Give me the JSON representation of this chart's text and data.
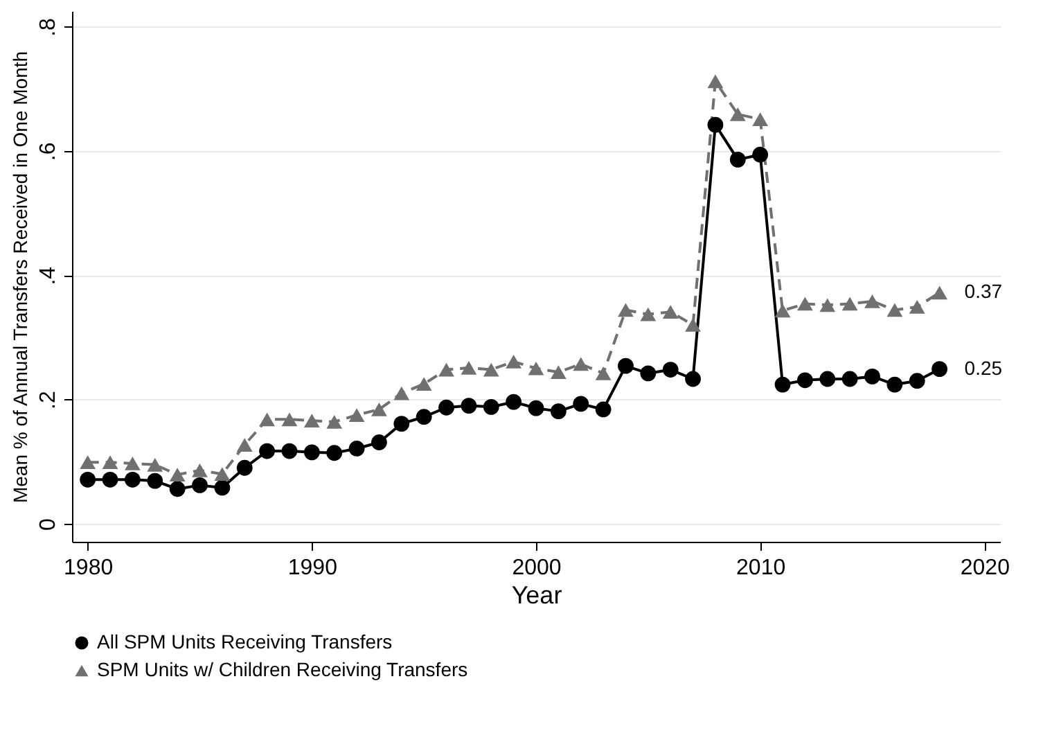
{
  "chart_data": {
    "type": "line",
    "xlabel": "Year",
    "ylabel": "Mean % of Annual Transfers Received in One Month",
    "x": [
      1980,
      1981,
      1982,
      1983,
      1984,
      1985,
      1986,
      1987,
      1988,
      1989,
      1990,
      1991,
      1992,
      1993,
      1994,
      1995,
      1996,
      1997,
      1998,
      1999,
      2000,
      2001,
      2002,
      2003,
      2004,
      2005,
      2006,
      2007,
      2008,
      2009,
      2010,
      2011,
      2012,
      2013,
      2014,
      2015,
      2016,
      2017,
      2018
    ],
    "series": [
      {
        "name": "All SPM Units Receiving Transfers",
        "color": "#000000",
        "marker": "circle",
        "line_style": "solid",
        "values": [
          0.071,
          0.071,
          0.071,
          0.069,
          0.056,
          0.062,
          0.058,
          0.09,
          0.117,
          0.117,
          0.115,
          0.114,
          0.121,
          0.131,
          0.161,
          0.172,
          0.187,
          0.19,
          0.188,
          0.196,
          0.186,
          0.181,
          0.193,
          0.184,
          0.254,
          0.242,
          0.248,
          0.233,
          0.642,
          0.586,
          0.594,
          0.224,
          0.231,
          0.233,
          0.233,
          0.237,
          0.224,
          0.23,
          0.249
        ]
      },
      {
        "name": "SPM Units w/ Children Receiving Transfers",
        "color": "#707070",
        "marker": "triangle",
        "line_style": "dashed",
        "values": [
          0.099,
          0.099,
          0.097,
          0.095,
          0.079,
          0.086,
          0.08,
          0.127,
          0.168,
          0.168,
          0.166,
          0.164,
          0.175,
          0.184,
          0.21,
          0.225,
          0.248,
          0.251,
          0.248,
          0.261,
          0.25,
          0.244,
          0.257,
          0.242,
          0.344,
          0.337,
          0.341,
          0.32,
          0.712,
          0.659,
          0.651,
          0.343,
          0.354,
          0.352,
          0.354,
          0.358,
          0.344,
          0.349,
          0.372
        ]
      }
    ],
    "annotations": [
      {
        "text": "0.37",
        "x": 2018,
        "y": 0.372
      },
      {
        "text": "0.25",
        "x": 2018,
        "y": 0.249
      }
    ],
    "xlim": [
      1979.3,
      2020.7
    ],
    "xticks": [
      1980,
      1990,
      2000,
      2010,
      2020
    ],
    "ylim": [
      -0.029,
      0.825
    ],
    "yticks": [
      0,
      {
        "value": 0.2,
        "label": ".2"
      },
      {
        "value": 0.4,
        "label": ".4"
      },
      {
        "value": 0.6,
        "label": ".6"
      },
      {
        "value": 0.8,
        "label": ".8"
      }
    ],
    "grid": "y",
    "legend": "bottom"
  }
}
